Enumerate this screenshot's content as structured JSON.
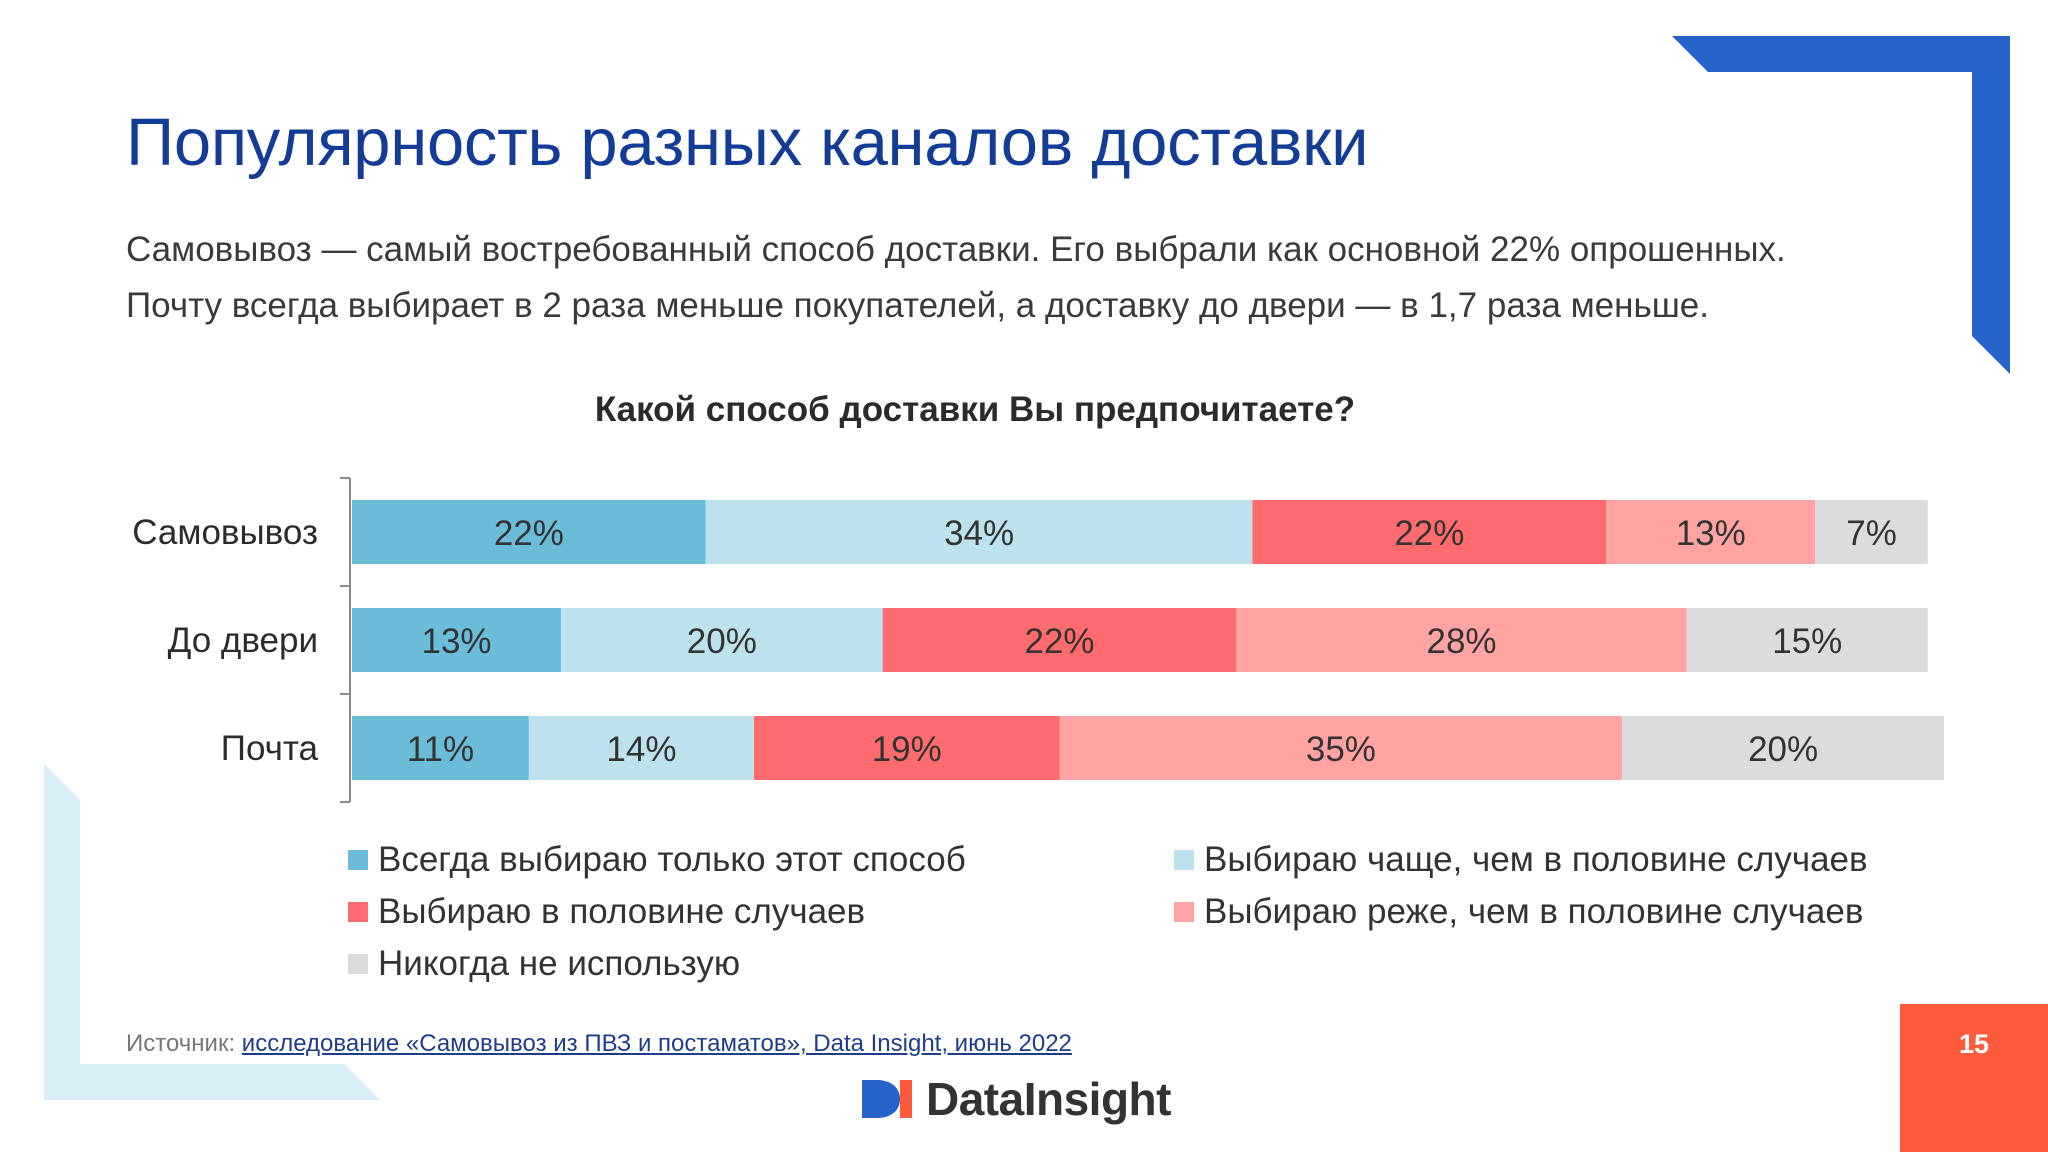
{
  "slide": {
    "title": "Популярность разных каналов доставки",
    "subtitle_line1": "Самовывоз — самый востребованный способ доставки. Его выбрали как основной 22% опрошенных.",
    "subtitle_line2": "Почту всегда выбирает в 2 раза меньше покупателей, а доставку до двери — в 1,7 раза меньше.",
    "source_prefix": "Источник: ",
    "source_link": "исследование «Самовывоз из ПВЗ и постаматов», Data Insight, июнь 2022",
    "logo_text": "DataInsight",
    "page_number": "15",
    "colors": {
      "title": "#123c96",
      "accent_blue": "#2563c9",
      "accent_light": "#d9eef6",
      "page_badge": "#ff5a3c"
    }
  },
  "chart_data": {
    "type": "bar",
    "orientation": "horizontal",
    "stacked": true,
    "percent_stacked": true,
    "title": "Какой способ доставки Вы предпочитаете?",
    "categories": [
      "Самовывоз",
      "До двери",
      "Почта"
    ],
    "series": [
      {
        "name": "Всегда выбираю только этот способ",
        "color": "#6bbcd9",
        "values": [
          22,
          13,
          11
        ],
        "labels": [
          "22%",
          "13%",
          "11%"
        ]
      },
      {
        "name": "Выбираю чаще, чем в половине случаев",
        "color": "#bde2ee",
        "values": [
          34,
          20,
          14
        ],
        "labels": [
          "34%",
          "20%",
          "14%"
        ]
      },
      {
        "name": "Выбираю в половине случаев",
        "color": "#ff6b6e",
        "values": [
          22,
          22,
          19
        ],
        "labels": [
          "22%",
          "22%",
          "19%"
        ]
      },
      {
        "name": "Выбираю реже, чем в половине случаев",
        "color": "#ffa3a3",
        "values": [
          13,
          28,
          35
        ],
        "labels": [
          "13%",
          "28%",
          "35%"
        ]
      },
      {
        "name": "Никогда не использую",
        "color": "#dcdcdf",
        "values": [
          7,
          15,
          20
        ],
        "labels": [
          "7%",
          "15%",
          "20%"
        ]
      }
    ],
    "xlim": [
      0,
      100
    ],
    "grid": false,
    "legend_position": "bottom"
  }
}
